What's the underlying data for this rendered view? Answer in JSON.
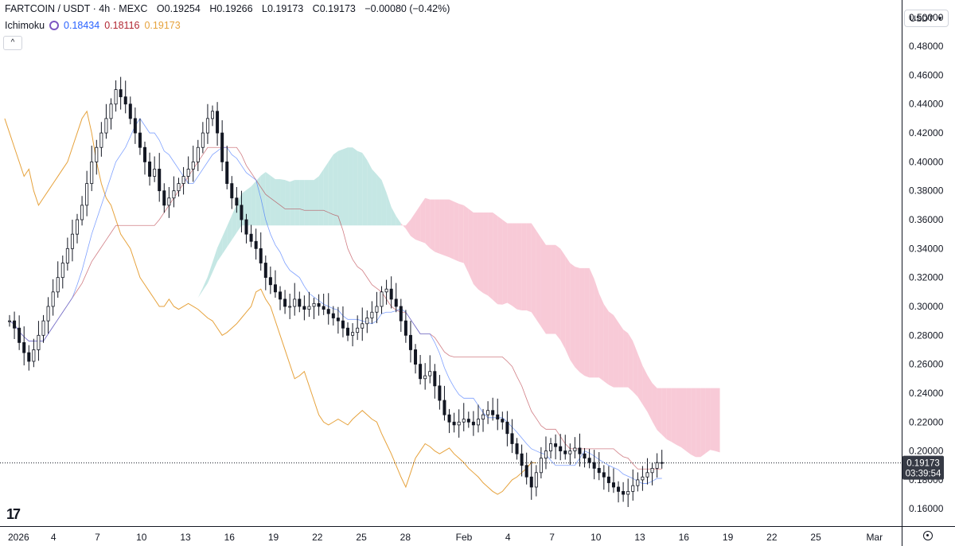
{
  "header": {
    "symbol": "FARTCOIN / USDT · 4h · MEXC",
    "open_label": "O",
    "open": "0.19254",
    "high_label": "H",
    "high": "0.19266",
    "low_label": "L",
    "low": "0.19173",
    "close_label": "C",
    "close": "0.19173",
    "change": "−0.00080 (−0.42%)"
  },
  "indicator": {
    "name": "Ichimoku",
    "value1": "0.18434",
    "value2": "0.18116",
    "value3": "0.19173"
  },
  "currency": "USDT",
  "price_tag": {
    "price": "0.19173",
    "countdown": "03:39:54"
  },
  "chart_data": {
    "type": "candlestick",
    "y_axis_labels": [
      "0.50000",
      "0.48000",
      "0.46000",
      "0.44000",
      "0.42000",
      "0.40000",
      "0.38000",
      "0.36000",
      "0.34000",
      "0.32000",
      "0.30000",
      "0.28000",
      "0.26000",
      "0.24000",
      "0.22000",
      "0.20000",
      "0.18000",
      "0.16000"
    ],
    "ylim": [
      0.148,
      0.512
    ],
    "x_axis_labels": [
      "2026",
      "4",
      "7",
      "10",
      "13",
      "16",
      "19",
      "22",
      "25",
      "28",
      "Feb",
      "4",
      "7",
      "10",
      "13",
      "16",
      "19",
      "22",
      "25",
      "Mar"
    ],
    "current_price": 0.19173,
    "colors": {
      "candle": "#131722",
      "tenkan": "#2962ff",
      "kijun": "#b22833",
      "chikou": "#e6a23c",
      "cloud_bull": "#b2dfdb",
      "cloud_bear": "#f5b8c9"
    },
    "close_series": {
      "x_start": 0,
      "x_step": 0.25,
      "values": [
        0.29,
        0.285,
        0.275,
        0.268,
        0.262,
        0.27,
        0.28,
        0.29,
        0.3,
        0.31,
        0.32,
        0.33,
        0.34,
        0.35,
        0.36,
        0.37,
        0.385,
        0.4,
        0.41,
        0.42,
        0.43,
        0.44,
        0.45,
        0.445,
        0.44,
        0.43,
        0.42,
        0.41,
        0.4,
        0.39,
        0.395,
        0.38,
        0.37,
        0.375,
        0.38,
        0.385,
        0.39,
        0.395,
        0.4,
        0.41,
        0.42,
        0.43,
        0.435,
        0.42,
        0.4,
        0.385,
        0.375,
        0.37,
        0.36,
        0.35,
        0.345,
        0.34,
        0.33,
        0.32,
        0.315,
        0.31,
        0.305,
        0.3,
        0.3,
        0.305,
        0.3,
        0.298,
        0.3,
        0.302,
        0.3,
        0.298,
        0.295,
        0.292,
        0.29,
        0.285,
        0.28,
        0.282,
        0.285,
        0.288,
        0.292,
        0.296,
        0.3,
        0.31,
        0.312,
        0.305,
        0.3,
        0.29,
        0.28,
        0.27,
        0.26,
        0.25,
        0.252,
        0.255,
        0.245,
        0.235,
        0.225,
        0.22,
        0.218,
        0.22,
        0.222,
        0.22,
        0.218,
        0.222,
        0.225,
        0.228,
        0.225,
        0.222,
        0.22,
        0.212,
        0.205,
        0.198,
        0.19,
        0.182,
        0.175,
        0.185,
        0.195,
        0.2,
        0.205,
        0.203,
        0.2,
        0.198,
        0.2,
        0.202,
        0.198,
        0.195,
        0.192,
        0.188,
        0.185,
        0.182,
        0.178,
        0.175,
        0.172,
        0.17,
        0.172,
        0.176,
        0.18,
        0.182,
        0.185,
        0.188,
        0.192,
        0.19173
      ],
      "label_positions": {
        "note": "x in days from Jan 1 2026"
      }
    },
    "ichimoku_values": {
      "tenkan": 0.18434,
      "kijun": 0.18116,
      "chikou": 0.19173
    }
  }
}
